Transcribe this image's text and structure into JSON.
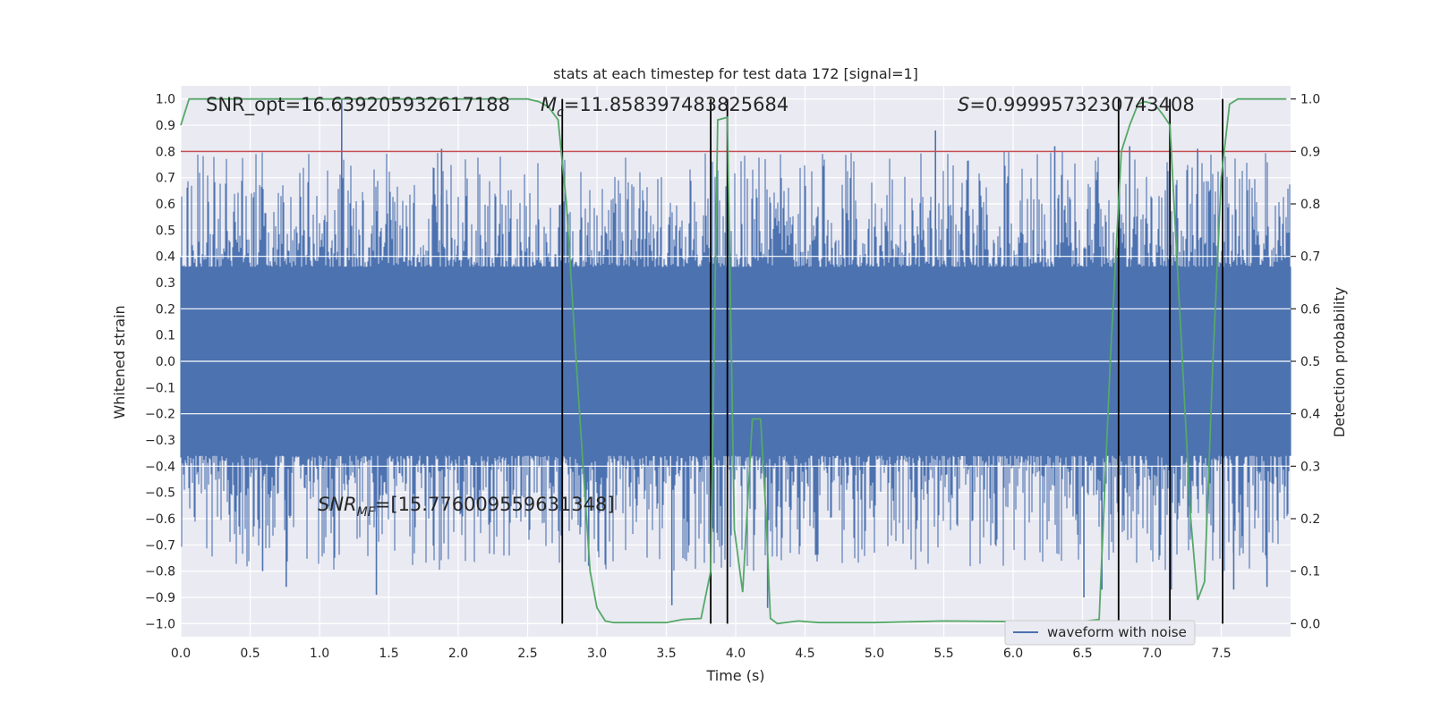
{
  "chart_data": {
    "type": "line",
    "title": "stats at each timestep for test data 172 [signal=1]",
    "xlabel": "Time (s)",
    "ylabel": "Whitened strain",
    "y2label": "Detection probability",
    "xlim": [
      0.0,
      8.0
    ],
    "ylim": [
      -1.05,
      1.05
    ],
    "y2lim": [
      -0.025,
      1.025
    ],
    "x_ticks": [
      0.0,
      0.5,
      1.0,
      1.5,
      2.0,
      2.5,
      3.0,
      3.5,
      4.0,
      4.5,
      5.0,
      5.5,
      6.0,
      6.5,
      7.0,
      7.5
    ],
    "x_tick_labels": [
      "0.0",
      "0.5",
      "1.0",
      "1.5",
      "2.0",
      "2.5",
      "3.0",
      "3.5",
      "4.0",
      "4.5",
      "5.0",
      "5.5",
      "6.0",
      "6.5",
      "7.0",
      "7.5"
    ],
    "y_ticks": [
      1.0,
      0.9,
      0.8,
      0.7,
      0.6,
      0.5,
      0.4,
      0.3,
      0.2,
      0.1,
      0.0,
      -0.1,
      -0.2,
      -0.3,
      -0.4,
      -0.5,
      -0.6,
      -0.7,
      -0.8,
      -0.9,
      -1.0
    ],
    "y_tick_labels": [
      "1.0",
      "0.9",
      "0.8",
      "0.7",
      "0.6",
      "0.5",
      "0.4",
      "0.3",
      "0.2",
      "0.1",
      "0.0",
      "−0.1",
      "−0.2",
      "−0.3",
      "−0.4",
      "−0.5",
      "−0.6",
      "−0.7",
      "−0.8",
      "−0.9",
      "−1.0"
    ],
    "y2_ticks": [
      1.0,
      0.9,
      0.8,
      0.7,
      0.6,
      0.5,
      0.4,
      0.3,
      0.2,
      0.1,
      0.0
    ],
    "y2_tick_labels": [
      "1.0",
      "0.9",
      "0.8",
      "0.7",
      "0.6",
      "0.5",
      "0.4",
      "0.3",
      "0.2",
      "0.1",
      "0.0"
    ],
    "threshold_y2": 0.9,
    "event_lines_x": [
      2.75,
      3.82,
      3.94,
      6.76,
      7.13,
      7.51
    ],
    "event_lines_y2_range": [
      0.0,
      1.0
    ],
    "waveform": {
      "name": "waveform with noise",
      "color": "#4c72b0",
      "core_band": [
        -0.36,
        0.36
      ],
      "spike_seed": 172,
      "spikes": [
        {
          "x": 1.16,
          "y": 1.0
        },
        {
          "x": 1.88,
          "y": 0.81
        },
        {
          "x": 5.44,
          "y": 0.88
        },
        {
          "x": 6.3,
          "y": 0.82
        },
        {
          "x": 6.84,
          "y": 0.82
        },
        {
          "x": 7.33,
          "y": 0.81
        },
        {
          "x": 1.41,
          "y": -0.89
        },
        {
          "x": 0.76,
          "y": -0.86
        },
        {
          "x": 0.59,
          "y": -0.8
        },
        {
          "x": 3.54,
          "y": -0.93
        },
        {
          "x": 6.51,
          "y": -0.9
        },
        {
          "x": 6.64,
          "y": -0.87
        },
        {
          "x": 7.14,
          "y": -0.87
        },
        {
          "x": 7.59,
          "y": -0.87
        },
        {
          "x": 7.83,
          "y": -0.86
        },
        {
          "x": 2.94,
          "y": -0.78
        },
        {
          "x": 4.23,
          "y": -0.94
        }
      ]
    },
    "probability": {
      "name": "detection probability",
      "color": "#55a868",
      "x": [
        0.0,
        0.06,
        0.5,
        1.0,
        1.5,
        2.0,
        2.5,
        2.58,
        2.65,
        2.72,
        2.78,
        2.85,
        2.9,
        2.95,
        3.0,
        3.06,
        3.12,
        3.3,
        3.5,
        3.62,
        3.75,
        3.82,
        3.87,
        3.94,
        3.99,
        4.05,
        4.12,
        4.18,
        4.22,
        4.25,
        4.3,
        4.45,
        4.6,
        5.0,
        5.5,
        6.0,
        6.5,
        6.62,
        6.7,
        6.78,
        6.84,
        6.9,
        6.95,
        7.02,
        7.08,
        7.13,
        7.2,
        7.28,
        7.33,
        7.38,
        7.44,
        7.5,
        7.56,
        7.62,
        7.68,
        7.97
      ],
      "y": [
        0.95,
        1.0,
        1.0,
        1.0,
        1.0,
        1.0,
        1.0,
        0.995,
        0.985,
        0.96,
        0.8,
        0.5,
        0.3,
        0.1,
        0.03,
        0.005,
        0.002,
        0.002,
        0.002,
        0.008,
        0.01,
        0.1,
        0.96,
        0.965,
        0.18,
        0.06,
        0.39,
        0.39,
        0.2,
        0.01,
        0.0,
        0.005,
        0.002,
        0.002,
        0.005,
        0.004,
        0.004,
        0.008,
        0.5,
        0.9,
        0.95,
        0.99,
        0.995,
        0.99,
        0.97,
        0.95,
        0.6,
        0.2,
        0.045,
        0.08,
        0.5,
        0.85,
        0.99,
        1.0,
        1.0,
        1.0
      ]
    },
    "annotations": {
      "snr_opt": "SNR_opt=16.639205932617188",
      "mc_symbol": "M",
      "mc_sub": "c",
      "mc_value": "=11.858397483825684",
      "s_symbol": "S",
      "s_value": "=0.9999573230743408",
      "snr_mf_symbol": "SNR",
      "snr_mf_sub": "MF",
      "snr_mf_value": "=[15.776009559631348]"
    },
    "legend": {
      "label": "waveform with noise",
      "placement": "lower-right"
    },
    "colors": {
      "background": "#eaeaf2",
      "grid": "#ffffff",
      "threshold": "#c44e52",
      "event_line": "#000000"
    }
  }
}
